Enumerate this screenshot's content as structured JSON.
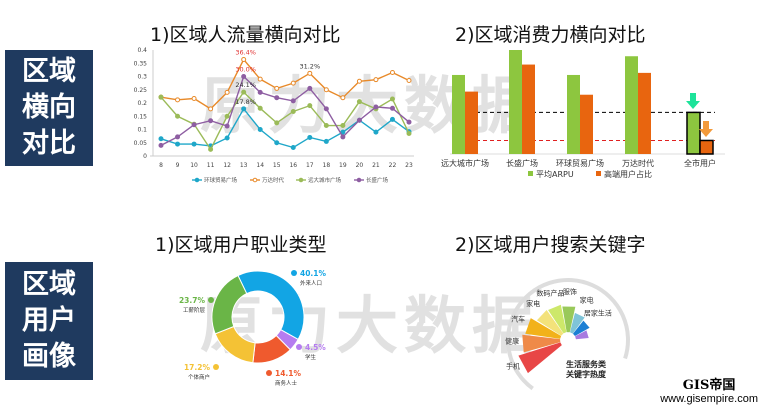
{
  "sections": [
    {
      "label": "区域\n横向\n对比"
    },
    {
      "label": "区域\n用户\n画像"
    }
  ],
  "titles": {
    "traffic": "1)区域人流量横向对比",
    "spend": "2)区域消费力横向对比",
    "job": "1)区域用户职业类型",
    "search": "2)区域用户搜索关键字"
  },
  "watermark": "原力大数据",
  "logo": {
    "name": "GIS帝国",
    "url": "www.gisempire.com"
  },
  "chart_data": [
    {
      "type": "line",
      "x": [
        8,
        9,
        10,
        11,
        12,
        13,
        14,
        15,
        16,
        17,
        18,
        19,
        20,
        21,
        22,
        23
      ],
      "ylim": [
        0,
        0.4
      ],
      "yticks": [
        "0",
        "0.05",
        "0.1",
        "0.15",
        "0.2",
        "0.25",
        "0.3",
        "0.35",
        "0.4"
      ],
      "series": [
        {
          "name": "环球贸易广场",
          "color": "#1fa7c9",
          "marker": "circle",
          "values": [
            0.065,
            0.045,
            0.045,
            0.038,
            0.068,
            0.178,
            0.1,
            0.05,
            0.032,
            0.07,
            0.055,
            0.09,
            0.135,
            0.09,
            0.138,
            0.092
          ]
        },
        {
          "name": "万达时代",
          "color": "#e88a2a",
          "marker": "open-circle",
          "values": [
            0.222,
            0.212,
            0.217,
            0.178,
            0.24,
            0.364,
            0.29,
            0.255,
            0.275,
            0.312,
            0.25,
            0.22,
            0.282,
            0.288,
            0.315,
            0.285
          ]
        },
        {
          "name": "远大城市广场",
          "color": "#9bbb59",
          "marker": "circle",
          "values": [
            0.222,
            0.15,
            0.12,
            0.025,
            0.15,
            0.241,
            0.18,
            0.125,
            0.168,
            0.19,
            0.115,
            0.115,
            0.205,
            0.178,
            0.215,
            0.085
          ]
        },
        {
          "name": "长盛广场",
          "color": "#8e5ea2",
          "marker": "circle",
          "values": [
            0.04,
            0.072,
            0.118,
            0.133,
            0.113,
            0.3,
            0.24,
            0.22,
            0.208,
            0.255,
            0.178,
            0.072,
            0.135,
            0.185,
            0.18,
            0.128
          ]
        }
      ],
      "annotations": [
        {
          "x": 13,
          "y": 0.364,
          "text": "36.4%",
          "color": "#e03030"
        },
        {
          "x": 13,
          "y": 0.3,
          "text": "30.0%",
          "color": "#e03030"
        },
        {
          "x": 13,
          "y": 0.241,
          "text": "24.1%",
          "color": "#333"
        },
        {
          "x": 13,
          "y": 0.178,
          "text": "17.8%",
          "color": "#333"
        },
        {
          "x": 17,
          "y": 0.312,
          "text": "31.2%",
          "color": "#333"
        }
      ]
    },
    {
      "type": "bar",
      "categories": [
        "远大城市广场",
        "长盛广场",
        "环球贸易广场",
        "万达时代",
        "全市用户"
      ],
      "series": [
        {
          "name": "平均ARPU",
          "color": "#8dc63f",
          "values": [
            76,
            100,
            76,
            94,
            40
          ]
        },
        {
          "name": "高端用户占比",
          "color": "#e8650f",
          "values": [
            60,
            86,
            57,
            78,
            13
          ]
        }
      ],
      "reference_lines": [
        {
          "value": 40,
          "color": "#000"
        },
        {
          "value": 13,
          "color": "#e02020"
        }
      ]
    },
    {
      "type": "pie",
      "donut": true,
      "slices": [
        {
          "label": "外来人口",
          "value": 40.1,
          "text": "40.1%",
          "color": "#12a5e4"
        },
        {
          "label": "学生",
          "value": 4.5,
          "text": "4.5%",
          "color": "#b57cf0"
        },
        {
          "label": "商务人士",
          "value": 14.1,
          "text": "14.1%",
          "color": "#ef5a2e"
        },
        {
          "label": "个体商户",
          "value": 17.2,
          "text": "17.2%",
          "color": "#f4c235"
        },
        {
          "label": "工薪阶层",
          "value": 23.7,
          "text": "23.7%",
          "color": "#6ab547"
        }
      ]
    },
    {
      "type": "radial-bar",
      "center_label": "生活服务类\n关键字热度",
      "categories": [
        {
          "label": "手机",
          "value": 100,
          "color": "#e84646"
        },
        {
          "label": "健康",
          "value": 85,
          "color": "#ef8a48"
        },
        {
          "label": "汽车",
          "value": 78,
          "color": "#f2b21a"
        },
        {
          "label": "家电",
          "value": 62,
          "color": "#f3e27a"
        },
        {
          "label": "数码产品",
          "value": 60,
          "color": "#cde86a"
        },
        {
          "label": "服饰",
          "value": 55,
          "color": "#99c95a"
        },
        {
          "label": "家电",
          "value": 40,
          "color": "#7fc4d8"
        },
        {
          "label": "居家生活",
          "value": 32,
          "color": "#1b7fd4"
        },
        {
          "label": "",
          "value": 22,
          "color": "#a77be0"
        }
      ]
    }
  ]
}
